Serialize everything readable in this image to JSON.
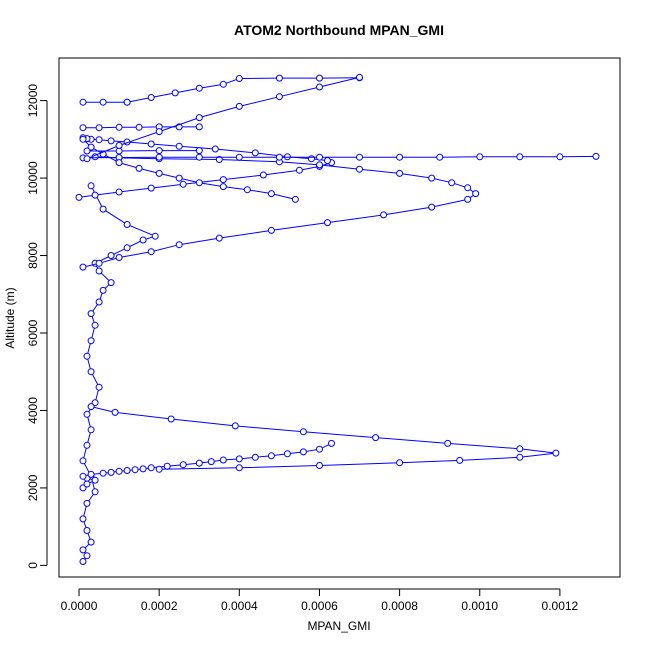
{
  "chart_data": {
    "type": "line",
    "title": "ATOM2 Northbound MPAN_GMI",
    "xlabel": "MPAN_GMI",
    "ylabel": "Altitude (m)",
    "xlim": [
      -5e-05,
      0.00135
    ],
    "ylim": [
      -300,
      13100
    ],
    "x_ticks": [
      "0.0000",
      "0.0002",
      "0.0004",
      "0.0006",
      "0.0008",
      "0.0010",
      "0.0012"
    ],
    "x_tick_values": [
      0,
      0.0002,
      0.0004,
      0.0006,
      0.0008,
      0.001,
      0.0012
    ],
    "y_ticks": [
      "0",
      "2000",
      "4000",
      "6000",
      "8000",
      "10000",
      "12000"
    ],
    "y_tick_values": [
      0,
      2000,
      4000,
      6000,
      8000,
      10000,
      12000
    ],
    "grid": false,
    "marker": "open-circle",
    "color": "#0000ff",
    "series": [
      {
        "x": [
          1e-05,
          2e-05,
          1e-05,
          3e-05,
          2e-05,
          1e-05,
          2e-05,
          4e-05,
          3e-05,
          1e-05,
          2e-05,
          3e-05,
          2e-05,
          4e-05,
          5e-05,
          3e-05,
          2e-05,
          3e-05,
          4e-05,
          3e-05,
          5e-05,
          6e-05,
          8e-05,
          5e-05,
          4e-05,
          8e-05,
          0.00012,
          0.00016,
          0.00019,
          0.00012,
          6e-05,
          3e-05
        ],
        "y": [
          100,
          250,
          400,
          600,
          900,
          1200,
          1600,
          1900,
          2300,
          2700,
          3100,
          3500,
          3900,
          4200,
          4600,
          5000,
          5400,
          5800,
          6200,
          6500,
          6800,
          7100,
          7300,
          7600,
          7800,
          8000,
          8200,
          8400,
          8500,
          8800,
          9200,
          9800
        ]
      },
      {
        "x": [
          1e-05,
          2e-05,
          4e-05,
          2e-05,
          1e-05,
          3e-05,
          6e-05,
          8e-05,
          0.0001,
          0.00012,
          0.00014,
          0.00016,
          0.00018,
          0.00022,
          0.00026,
          0.0003,
          0.00033,
          0.00036,
          0.0004,
          0.00044,
          0.00048,
          0.00052,
          0.00056,
          0.0006,
          0.00063
        ],
        "y": [
          2000,
          2100,
          2200,
          2250,
          2300,
          2350,
          2380,
          2400,
          2430,
          2450,
          2470,
          2490,
          2520,
          2560,
          2600,
          2640,
          2680,
          2720,
          2750,
          2790,
          2830,
          2880,
          2930,
          3000,
          3150
        ]
      },
      {
        "x": [
          0.0002,
          0.0004,
          0.0006,
          0.0008,
          0.00095,
          0.0011,
          0.00119,
          0.0011,
          0.00092,
          0.00074,
          0.00056,
          0.00039,
          0.00023,
          9e-05,
          3e-05
        ],
        "y": [
          2480,
          2520,
          2580,
          2650,
          2710,
          2790,
          2900,
          3010,
          3150,
          3300,
          3450,
          3600,
          3780,
          3950,
          4100
        ]
      },
      {
        "x": [
          0.0,
          4e-05,
          0.0001,
          0.00018,
          0.00026,
          0.00036,
          0.00046,
          0.00055,
          0.0006,
          0.00063,
          0.00062,
          0.00058,
          0.00052,
          0.00044,
          0.00034,
          0.00025,
          0.00018,
          0.00012,
          8e-05,
          5e-05,
          3e-05,
          2e-05,
          1e-05
        ],
        "y": [
          9500,
          9560,
          9640,
          9740,
          9840,
          9960,
          10080,
          10200,
          10300,
          10400,
          10450,
          10500,
          10550,
          10650,
          10750,
          10820,
          10880,
          10930,
          10960,
          10990,
          11000,
          11020,
          11040
        ]
      },
      {
        "x": [
          1e-05,
          5e-05,
          0.0001,
          0.00018,
          0.00025,
          0.00035,
          0.00048,
          0.00062,
          0.00076,
          0.00088,
          0.00097,
          0.00099,
          0.00097,
          0.00093,
          0.00088,
          0.0008,
          0.0007,
          0.0006,
          0.0005,
          0.00035,
          0.0002,
          0.0001,
          4e-05
        ],
        "y": [
          7700,
          7800,
          7950,
          8100,
          8280,
          8450,
          8650,
          8850,
          9050,
          9250,
          9450,
          9600,
          9750,
          9880,
          10000,
          10120,
          10230,
          10340,
          10420,
          10480,
          10500,
          10520,
          10550
        ]
      },
      {
        "x": [
          1e-05,
          0.0001,
          0.0002,
          0.0003,
          0.0004,
          0.0005,
          0.0006,
          0.0007,
          0.0008,
          0.0009,
          0.001,
          0.0011,
          0.0012,
          0.00129
        ],
        "y": [
          10520,
          10530,
          10540,
          10540,
          10540,
          10540,
          10540,
          10540,
          10540,
          10540,
          10550,
          10550,
          10550,
          10560
        ]
      },
      {
        "x": [
          1e-05,
          3e-05,
          6e-05,
          0.0001,
          0.00015,
          0.0002,
          0.00025,
          0.0003,
          0.00036,
          0.00042,
          0.00048,
          0.00054
        ],
        "y": [
          11000,
          10800,
          10620,
          10400,
          10250,
          10120,
          10000,
          9880,
          9780,
          9700,
          9600,
          9450
        ]
      },
      {
        "x": [
          1e-05,
          5e-05,
          0.0001,
          0.00015,
          0.0002,
          0.00025,
          0.0003
        ],
        "y": [
          11300,
          11300,
          11310,
          11310,
          11320,
          11320,
          11320
        ]
      },
      {
        "x": [
          2e-05,
          0.0001,
          0.0002,
          0.0003
        ],
        "y": [
          10700,
          10700,
          10710,
          10710
        ]
      },
      {
        "x": [
          1e-05,
          6e-05,
          0.00012
        ],
        "y": [
          11960,
          11960,
          11960
        ]
      },
      {
        "x": [
          0.00012,
          0.00018,
          0.00024,
          0.0003,
          0.00036,
          0.0004,
          0.0005,
          0.0006,
          0.0007
        ],
        "y": [
          11960,
          12080,
          12200,
          12320,
          12420,
          12570,
          12580,
          12580,
          12590
        ]
      },
      {
        "x": [
          2e-05,
          0.0001,
          0.0002,
          0.0003,
          0.0004,
          0.0005,
          0.0006,
          0.0007
        ],
        "y": [
          10500,
          10840,
          11200,
          11560,
          11850,
          12100,
          12350,
          12600
        ]
      }
    ]
  }
}
